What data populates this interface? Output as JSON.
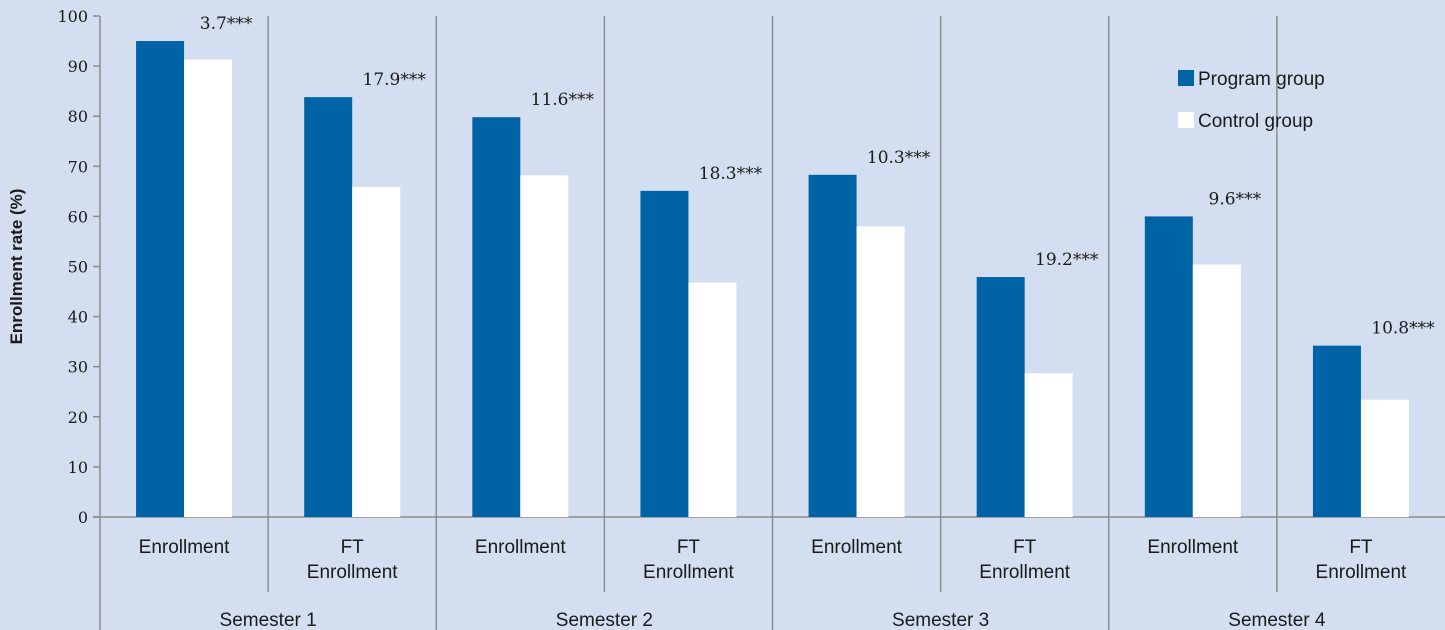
{
  "chart_data": {
    "type": "bar",
    "ylabel": "Enrollment rate (%)",
    "xlabel": "",
    "ylim": [
      0,
      100
    ],
    "yticks": [
      0,
      10,
      20,
      30,
      40,
      50,
      60,
      70,
      80,
      90,
      100
    ],
    "grid": false,
    "legend_position": "top-right",
    "groups": [
      "Semester 1",
      "Semester 2",
      "Semester 3",
      "Semester 4"
    ],
    "categories": [
      {
        "label": [
          "Enrollment"
        ],
        "group": 0
      },
      {
        "label": [
          "FT",
          "Enrollment"
        ],
        "group": 0
      },
      {
        "label": [
          "Enrollment"
        ],
        "group": 1
      },
      {
        "label": [
          "FT",
          "Enrollment"
        ],
        "group": 1
      },
      {
        "label": [
          "Enrollment"
        ],
        "group": 2
      },
      {
        "label": [
          "FT",
          "Enrollment"
        ],
        "group": 2
      },
      {
        "label": [
          "Enrollment"
        ],
        "group": 3
      },
      {
        "label": [
          "FT",
          "Enrollment"
        ],
        "group": 3
      }
    ],
    "series": [
      {
        "name": "Program group",
        "color": "#0063a6",
        "values": [
          95.0,
          83.8,
          79.8,
          65.1,
          68.3,
          47.9,
          60.0,
          34.2
        ]
      },
      {
        "name": "Control group",
        "color": "#ffffff",
        "values": [
          91.3,
          65.9,
          68.2,
          46.8,
          58.0,
          28.7,
          50.4,
          23.4
        ]
      }
    ],
    "annotations": [
      "3.7***",
      "17.9***",
      "11.6***",
      "18.3***",
      "10.3***",
      "19.2***",
      "9.6***",
      "10.8***"
    ]
  }
}
